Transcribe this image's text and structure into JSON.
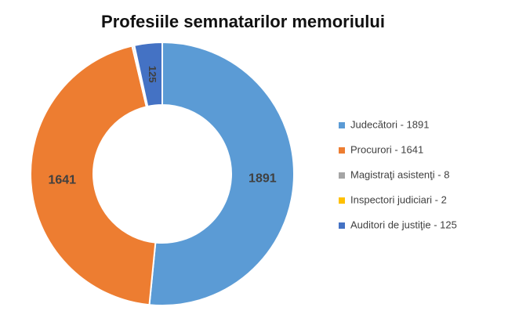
{
  "chart_data": {
    "type": "donut",
    "title": "Profesiile semnatarilor memoriului",
    "categories": [
      "Judecători - 1891",
      "Procurori - 1641",
      "Magistraţi asistenţi - 8",
      "Inspectori judiciari - 2",
      "Auditori de justiţie - 125"
    ],
    "values": [
      1891,
      1641,
      8,
      2,
      125
    ],
    "colors": [
      "#5b9bd5",
      "#ed7d31",
      "#a5a5a5",
      "#ffc000",
      "#4472c4"
    ],
    "legend": "right"
  }
}
